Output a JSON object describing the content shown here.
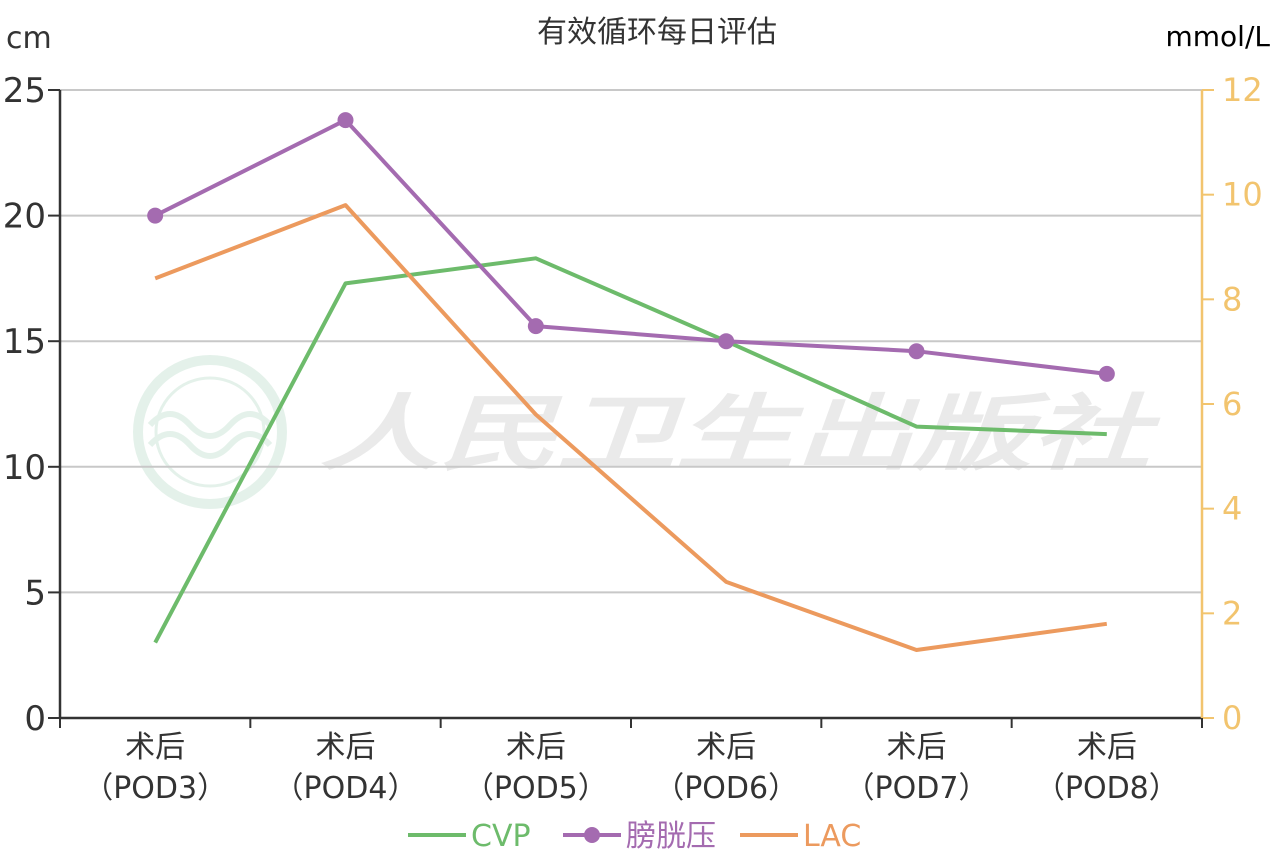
{
  "chart_data": {
    "type": "line",
    "title": "有效循环每日评估",
    "categories": [
      [
        "术后",
        "（POD3）"
      ],
      [
        "术后",
        "（POD4）"
      ],
      [
        "术后",
        "（POD5）"
      ],
      [
        "术后",
        "（POD6）"
      ],
      [
        "术后",
        "（POD7）"
      ],
      [
        "术后",
        "（POD8）"
      ]
    ],
    "y_left": {
      "unit": "cm",
      "ylim": [
        0,
        25
      ],
      "ticks": [
        0,
        5,
        10,
        15,
        20,
        25
      ]
    },
    "y_right": {
      "unit": "mmol/L",
      "ylim": [
        0,
        12
      ],
      "ticks": [
        0,
        2,
        4,
        6,
        8,
        10,
        12
      ],
      "color": "#f2c46e"
    },
    "grid": true,
    "legend_position": "bottom-center",
    "series": [
      {
        "name": "CVP",
        "axis": "left",
        "color": "#6dbb6b",
        "marker": false,
        "values": [
          3.0,
          17.3,
          18.3,
          15.0,
          11.6,
          11.3
        ]
      },
      {
        "name": "膀胱压",
        "axis": "left",
        "color": "#a46bb0",
        "marker": true,
        "values": [
          20.0,
          23.8,
          15.6,
          15.0,
          14.6,
          13.7
        ]
      },
      {
        "name": "LAC",
        "axis": "right",
        "color": "#ec9a5e",
        "marker": false,
        "values": [
          8.4,
          9.8,
          5.8,
          2.6,
          1.3,
          1.8
        ]
      }
    ]
  },
  "watermark": {
    "text": "人民卫生出版社"
  }
}
